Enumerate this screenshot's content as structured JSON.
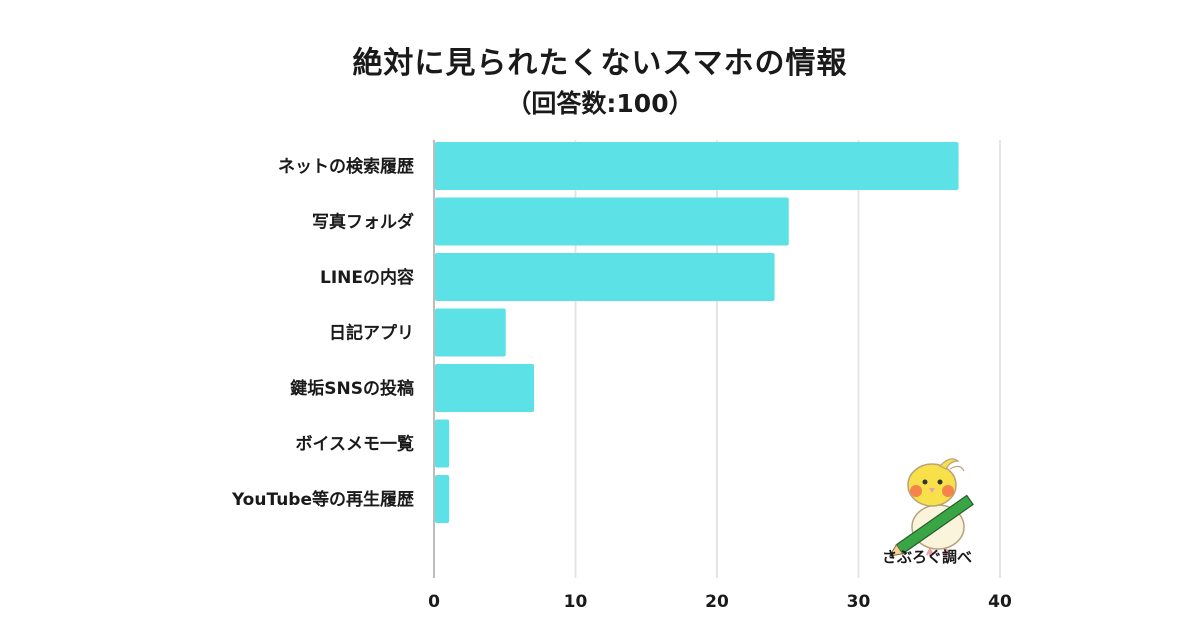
{
  "chart_data": {
    "type": "bar",
    "orientation": "horizontal",
    "title": "絶対に見られたくないスマホの情報",
    "subtitle": "（回答数:100）",
    "categories": [
      "ネットの検索履歴",
      "写真フォルダ",
      "LINEの内容",
      "日記アプリ",
      "鍵垢SNSの投稿",
      "ボイスメモ一覧",
      "YouTube等の再生履歴"
    ],
    "values": [
      37,
      25,
      24,
      5,
      7,
      1,
      1
    ],
    "xlim": [
      0,
      40
    ],
    "xticks": [
      0,
      10,
      20,
      30,
      40
    ],
    "grid": true,
    "bar_color": "#5ce1e6"
  },
  "branding": {
    "label": "さぶろぐ調べ",
    "mascot_icon": "bird-mascot-with-pencil"
  }
}
